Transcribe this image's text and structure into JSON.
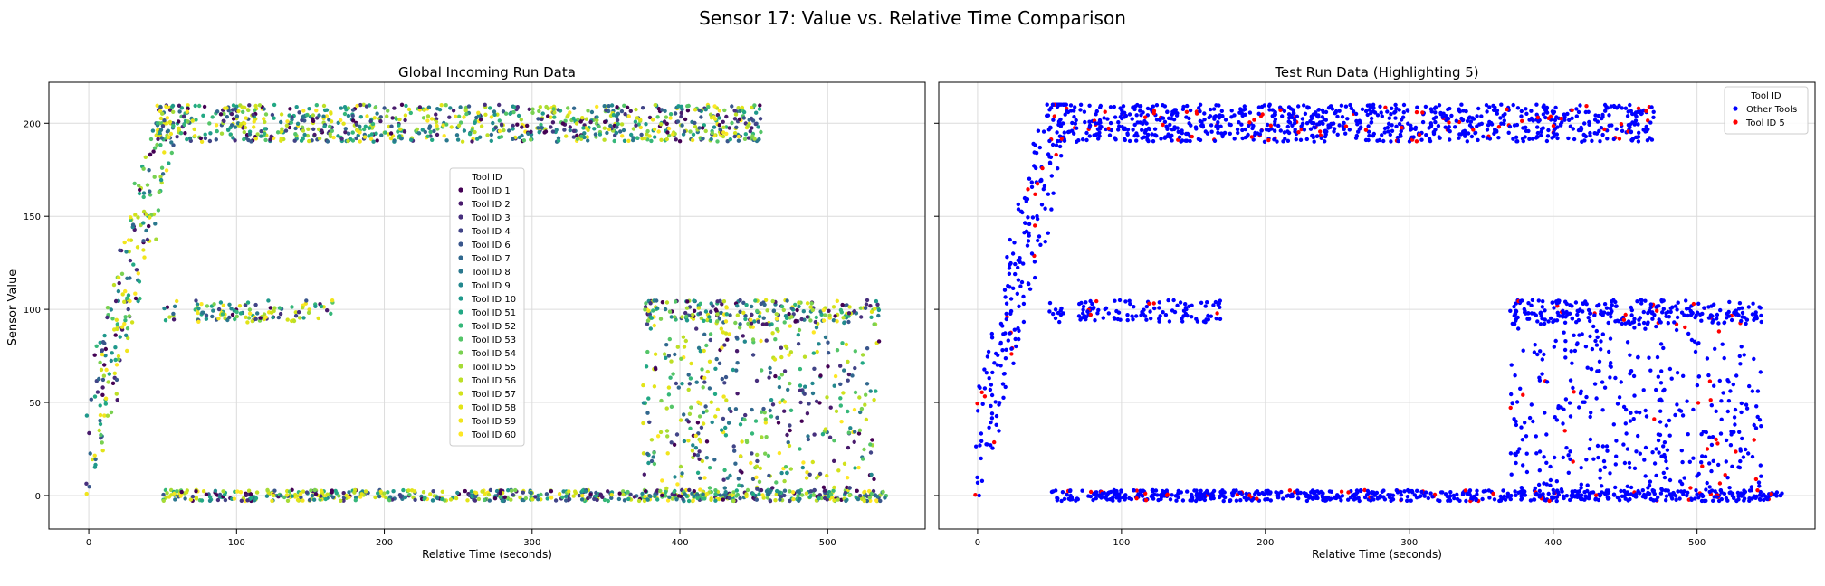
{
  "figure": {
    "suptitle": "Sensor 17: Value vs. Relative Time Comparison",
    "shared_ylabel": "Sensor Value"
  },
  "chart_data": [
    {
      "type": "scatter",
      "title": "Global Incoming Run Data",
      "xlabel": "Relative Time (seconds)",
      "ylabel": "Sensor Value",
      "xlim": [
        -27,
        566
      ],
      "ylim": [
        -18,
        222
      ],
      "xticks": [
        0,
        100,
        200,
        300,
        400,
        500
      ],
      "yticks": [
        0,
        50,
        100,
        150,
        200
      ],
      "grid": true,
      "colormap": "viridis",
      "legend": {
        "title": "Tool ID",
        "placement": "center",
        "entries": [
          "Tool ID 1",
          "Tool ID 2",
          "Tool ID 3",
          "Tool ID 4",
          "Tool ID 6",
          "Tool ID 7",
          "Tool ID 8",
          "Tool ID 9",
          "Tool ID 10",
          "Tool ID 51",
          "Tool ID 52",
          "Tool ID 53",
          "Tool ID 54",
          "Tool ID 55",
          "Tool ID 56",
          "Tool ID 57",
          "Tool ID 58",
          "Tool ID 59",
          "Tool ID 60"
        ],
        "colors": [
          "#440154",
          "#481a6c",
          "#472f7d",
          "#414487",
          "#39568c",
          "#31688e",
          "#2a788e",
          "#23888e",
          "#1f988b",
          "#22a884",
          "#35b779",
          "#54c568",
          "#7ad151",
          "#a5db36",
          "#bddf26",
          "#d2e21b",
          "#e2e418",
          "#f1e51d",
          "#fde725"
        ]
      },
      "pattern": {
        "ramp": {
          "x": [
            0,
            55
          ],
          "y": [
            20,
            200
          ]
        },
        "plateau_high": {
          "x": [
            45,
            455
          ],
          "y": [
            190,
            210
          ]
        },
        "mid_band": {
          "x": [
            50,
            165
          ],
          "y": [
            93,
            105
          ]
        },
        "baseline": {
          "x": [
            50,
            540
          ],
          "y": [
            -3,
            3
          ]
        },
        "drop_region": {
          "x": [
            375,
            535
          ],
          "y": [
            0,
            105
          ]
        }
      }
    },
    {
      "type": "scatter",
      "title": "Test Run Data (Highlighting 5)",
      "xlabel": "Relative Time (seconds)",
      "ylabel": "",
      "xlim": [
        -27,
        582
      ],
      "ylim": [
        -18,
        222
      ],
      "xticks": [
        0,
        100,
        200,
        300,
        400,
        500
      ],
      "yticks": [
        0,
        50,
        100,
        150,
        200
      ],
      "grid": true,
      "legend": {
        "title": "Tool ID",
        "placement": "upper right",
        "entries": [
          "Other Tools",
          "Tool ID 5"
        ],
        "colors": [
          "#0000ff",
          "#ff0000"
        ]
      },
      "pattern": {
        "ramp": {
          "x": [
            0,
            60
          ],
          "y": [
            18,
            210
          ]
        },
        "plateau_high": {
          "x": [
            50,
            470
          ],
          "y": [
            190,
            210
          ]
        },
        "mid_band": {
          "x": [
            50,
            170
          ],
          "y": [
            93,
            105
          ]
        },
        "baseline": {
          "x": [
            50,
            560
          ],
          "y": [
            -3,
            3
          ]
        },
        "drop_region": {
          "x": [
            370,
            545
          ],
          "y": [
            0,
            105
          ]
        }
      }
    }
  ]
}
